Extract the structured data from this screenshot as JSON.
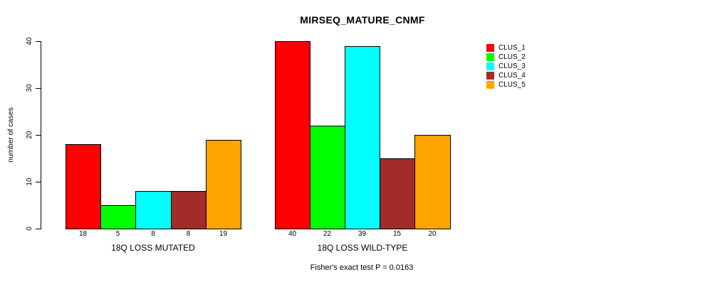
{
  "figure": {
    "title": "MIRSEQ_MATURE_CNMF",
    "caption": "Fisher's exact test P = 0.0163"
  },
  "chart_data": {
    "type": "bar",
    "title": "MIRSEQ_MATURE_CNMF",
    "xlabel": "",
    "ylabel": "number of cases",
    "ylim": [
      0,
      40
    ],
    "yticks": [
      0,
      10,
      20,
      30,
      40
    ],
    "grid": false,
    "legend_position": "top-right",
    "bar_value_labels_shown": true,
    "categories": [
      "18Q LOSS MUTATED",
      "18Q LOSS WILD-TYPE"
    ],
    "series": [
      {
        "name": "CLUS_1",
        "color": "#FF0000",
        "values": [
          18,
          40
        ]
      },
      {
        "name": "CLUS_2",
        "color": "#00FF00",
        "values": [
          5,
          22
        ]
      },
      {
        "name": "CLUS_3",
        "color": "#00FFFF",
        "values": [
          8,
          39
        ]
      },
      {
        "name": "CLUS_4",
        "color": "#A52A2A",
        "values": [
          8,
          15
        ]
      },
      {
        "name": "CLUS_5",
        "color": "#FFA500",
        "values": [
          19,
          20
        ]
      }
    ],
    "annotation": "Fisher's exact test P = 0.0163"
  }
}
